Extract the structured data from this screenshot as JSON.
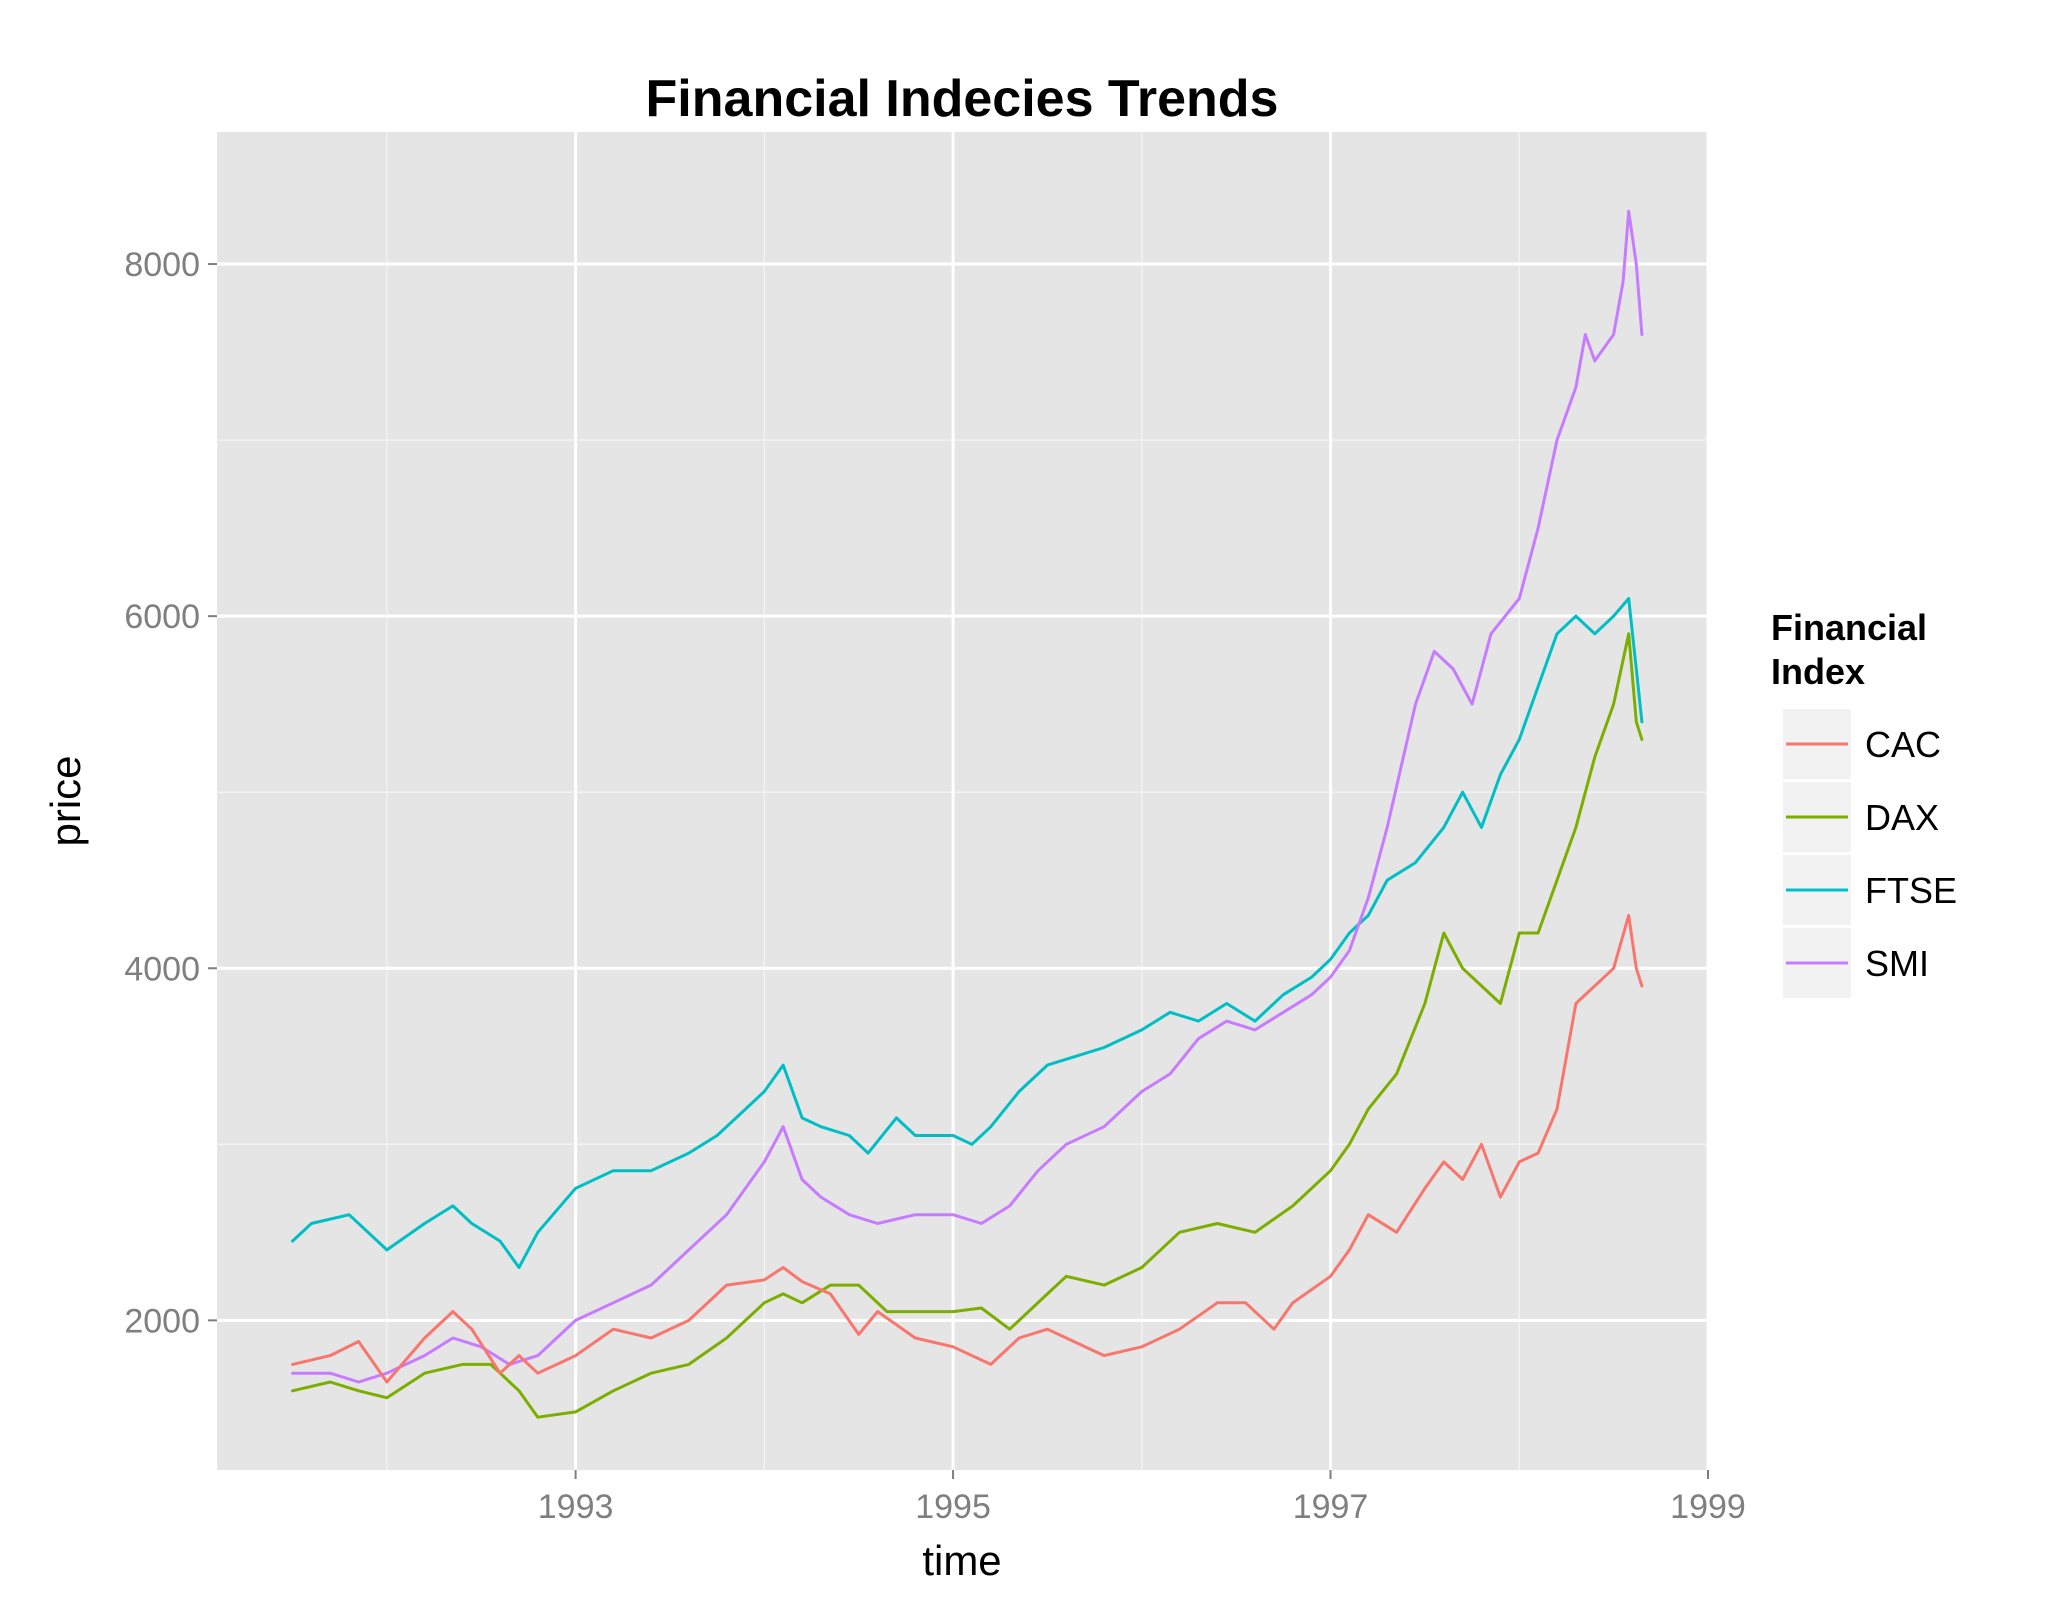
{
  "chart_data": {
    "type": "line",
    "title": "Financial Indecies Trends",
    "xlabel": "time",
    "ylabel": "price",
    "xlim": [
      1991.1,
      1999.0
    ],
    "ylim": [
      1150,
      8750
    ],
    "x_ticks": [
      1993,
      1995,
      1997,
      1999
    ],
    "x_tick_labels": [
      "1993",
      "1995",
      "1997",
      "1999"
    ],
    "x_minor_ticks": [
      1992,
      1994,
      1996,
      1998
    ],
    "y_ticks": [
      2000,
      4000,
      6000,
      8000
    ],
    "y_tick_labels": [
      "2000",
      "4000",
      "6000",
      "8000"
    ],
    "y_minor_ticks": [
      3000,
      5000,
      7000
    ],
    "grid": true,
    "legend": {
      "title_lines": [
        "Financial",
        "Index"
      ],
      "position": "right"
    },
    "background": "#e5e5e5",
    "series": [
      {
        "name": "CAC",
        "color": "#f8766d",
        "x": [
          1991.5,
          1991.7,
          1991.85,
          1992.0,
          1992.2,
          1992.35,
          1992.45,
          1992.6,
          1992.7,
          1992.8,
          1993.0,
          1993.2,
          1993.4,
          1993.6,
          1993.8,
          1994.0,
          1994.1,
          1994.2,
          1994.35,
          1994.5,
          1994.6,
          1994.8,
          1995.0,
          1995.2,
          1995.35,
          1995.5,
          1995.6,
          1995.8,
          1996.0,
          1996.2,
          1996.4,
          1996.55,
          1996.7,
          1996.8,
          1997.0,
          1997.1,
          1997.2,
          1997.35,
          1997.5,
          1997.6,
          1997.7,
          1997.8,
          1997.9,
          1998.0,
          1998.1,
          1998.2,
          1998.3,
          1998.4,
          1998.5,
          1998.58,
          1998.62,
          1998.65
        ],
        "values": [
          1750,
          1800,
          1880,
          1650,
          1900,
          2050,
          1950,
          1700,
          1800,
          1700,
          1800,
          1950,
          1900,
          2000,
          2200,
          2230,
          2300,
          2220,
          2150,
          1920,
          2050,
          1900,
          1850,
          1750,
          1900,
          1950,
          1900,
          1800,
          1850,
          1950,
          2100,
          2100,
          1950,
          2100,
          2250,
          2400,
          2600,
          2500,
          2750,
          2900,
          2800,
          3000,
          2700,
          2900,
          2950,
          3200,
          3800,
          3900,
          4000,
          4300,
          4000,
          3900
        ]
      },
      {
        "name": "DAX",
        "color": "#7cae00",
        "x": [
          1991.5,
          1991.7,
          1991.85,
          1992.0,
          1992.2,
          1992.4,
          1992.55,
          1992.7,
          1992.8,
          1993.0,
          1993.2,
          1993.4,
          1993.6,
          1993.8,
          1994.0,
          1994.1,
          1994.2,
          1994.35,
          1994.5,
          1994.65,
          1994.8,
          1995.0,
          1995.15,
          1995.3,
          1995.5,
          1995.6,
          1995.8,
          1996.0,
          1996.2,
          1996.4,
          1996.6,
          1996.8,
          1997.0,
          1997.1,
          1997.2,
          1997.35,
          1997.5,
          1997.6,
          1997.7,
          1997.8,
          1997.9,
          1998.0,
          1998.1,
          1998.2,
          1998.3,
          1998.4,
          1998.5,
          1998.58,
          1998.62,
          1998.65
        ],
        "values": [
          1600,
          1650,
          1600,
          1560,
          1700,
          1750,
          1750,
          1600,
          1450,
          1480,
          1600,
          1700,
          1750,
          1900,
          2100,
          2150,
          2100,
          2200,
          2200,
          2050,
          2050,
          2050,
          2070,
          1950,
          2150,
          2250,
          2200,
          2300,
          2500,
          2550,
          2500,
          2650,
          2850,
          3000,
          3200,
          3400,
          3800,
          4200,
          4000,
          3900,
          3800,
          4200,
          4200,
          4500,
          4800,
          5200,
          5500,
          5900,
          5400,
          5300
        ]
      },
      {
        "name": "FTSE",
        "color": "#00bfc4",
        "x": [
          1991.5,
          1991.6,
          1991.8,
          1992.0,
          1992.2,
          1992.35,
          1992.45,
          1992.6,
          1992.7,
          1992.8,
          1993.0,
          1993.2,
          1993.4,
          1993.6,
          1993.75,
          1993.9,
          1994.0,
          1994.1,
          1994.2,
          1994.3,
          1994.45,
          1994.55,
          1994.7,
          1994.8,
          1995.0,
          1995.1,
          1995.2,
          1995.35,
          1995.5,
          1995.65,
          1995.8,
          1996.0,
          1996.15,
          1996.3,
          1996.45,
          1996.6,
          1996.75,
          1996.9,
          1997.0,
          1997.1,
          1997.2,
          1997.3,
          1997.45,
          1997.6,
          1997.7,
          1997.8,
          1997.9,
          1998.0,
          1998.1,
          1998.2,
          1998.3,
          1998.4,
          1998.5,
          1998.58,
          1998.62,
          1998.65
        ],
        "values": [
          2450,
          2550,
          2600,
          2400,
          2550,
          2650,
          2550,
          2450,
          2300,
          2500,
          2750,
          2850,
          2850,
          2950,
          3050,
          3200,
          3300,
          3450,
          3150,
          3100,
          3050,
          2950,
          3150,
          3050,
          3050,
          3000,
          3100,
          3300,
          3450,
          3500,
          3550,
          3650,
          3750,
          3700,
          3800,
          3700,
          3850,
          3950,
          4050,
          4200,
          4300,
          4500,
          4600,
          4800,
          5000,
          4800,
          5100,
          5300,
          5600,
          5900,
          6000,
          5900,
          6000,
          6100,
          5700,
          5400
        ]
      },
      {
        "name": "SMI",
        "color": "#c77cff",
        "x": [
          1991.5,
          1991.7,
          1991.85,
          1992.0,
          1992.2,
          1992.35,
          1992.5,
          1992.65,
          1992.8,
          1993.0,
          1993.2,
          1993.4,
          1993.6,
          1993.8,
          1994.0,
          1994.1,
          1994.2,
          1994.3,
          1994.45,
          1994.6,
          1994.8,
          1995.0,
          1995.15,
          1995.3,
          1995.45,
          1995.6,
          1995.8,
          1996.0,
          1996.15,
          1996.3,
          1996.45,
          1996.6,
          1996.75,
          1996.9,
          1997.0,
          1997.1,
          1997.2,
          1997.3,
          1997.45,
          1997.55,
          1997.65,
          1997.75,
          1997.85,
          1998.0,
          1998.1,
          1998.2,
          1998.3,
          1998.35,
          1998.4,
          1998.5,
          1998.55,
          1998.58,
          1998.62,
          1998.65
        ],
        "values": [
          1700,
          1700,
          1650,
          1700,
          1800,
          1900,
          1850,
          1750,
          1800,
          2000,
          2100,
          2200,
          2400,
          2600,
          2900,
          3100,
          2800,
          2700,
          2600,
          2550,
          2600,
          2600,
          2550,
          2650,
          2850,
          3000,
          3100,
          3300,
          3400,
          3600,
          3700,
          3650,
          3750,
          3850,
          3950,
          4100,
          4400,
          4800,
          5500,
          5800,
          5700,
          5500,
          5900,
          6100,
          6500,
          7000,
          7300,
          7600,
          7450,
          7600,
          7900,
          8300,
          8000,
          7600
        ]
      }
    ]
  }
}
